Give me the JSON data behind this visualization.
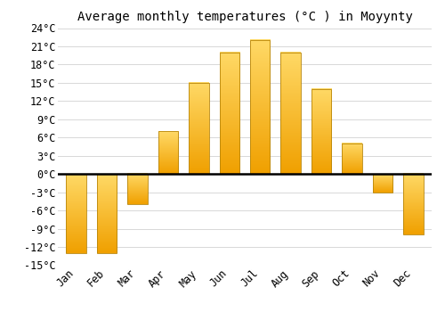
{
  "title": "Average monthly temperatures (°C ) in Moyynty",
  "months": [
    "Jan",
    "Feb",
    "Mar",
    "Apr",
    "May",
    "Jun",
    "Jul",
    "Aug",
    "Sep",
    "Oct",
    "Nov",
    "Dec"
  ],
  "values": [
    -13,
    -13,
    -5,
    7,
    15,
    20,
    22,
    20,
    14,
    5,
    -3,
    -10
  ],
  "bar_color_top": "#FFD966",
  "bar_color_bottom": "#F0A000",
  "bar_edge_color": "#B8860B",
  "ylim": [
    -15,
    24
  ],
  "yticks": [
    -15,
    -12,
    -9,
    -6,
    -3,
    0,
    3,
    6,
    9,
    12,
    15,
    18,
    21,
    24
  ],
  "background_color": "#ffffff",
  "grid_color": "#d8d8d8",
  "title_fontsize": 10,
  "tick_fontsize": 8.5
}
